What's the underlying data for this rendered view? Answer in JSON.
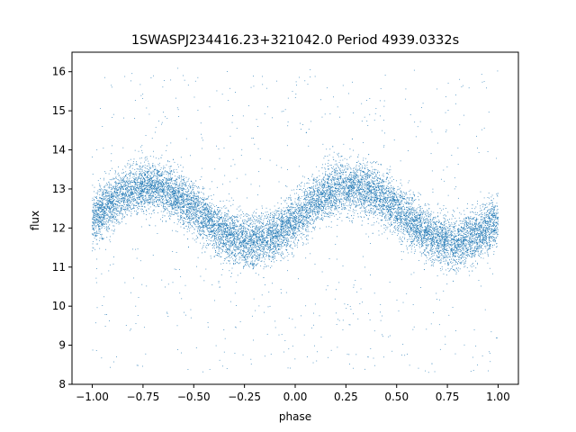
{
  "chart_data": {
    "type": "scatter",
    "title": "1SWASPJ234416.23+321042.0 Period 4939.0332s",
    "xlabel": "phase",
    "ylabel": "flux",
    "xlim": [
      -1.1,
      1.1
    ],
    "ylim": [
      8.0,
      16.5
    ],
    "xticks": [
      -1.0,
      -0.75,
      -0.5,
      -0.25,
      0.0,
      0.25,
      0.5,
      0.75,
      1.0
    ],
    "xtick_labels": [
      "−1.00",
      "−0.75",
      "−0.50",
      "−0.25",
      "0.00",
      "0.25",
      "0.50",
      "0.75",
      "1.00"
    ],
    "yticks": [
      8,
      9,
      10,
      11,
      12,
      13,
      14,
      15,
      16
    ],
    "ytick_labels": [
      "8",
      "9",
      "10",
      "11",
      "12",
      "13",
      "14",
      "15",
      "16"
    ],
    "grid": false,
    "legend": "none",
    "marker_color": "#1f77b4",
    "series": [
      {
        "model": "sinusoid",
        "phase_range": [
          -1.0,
          1.0
        ],
        "mean_flux": 12.35,
        "amplitude": 0.72,
        "peak_phase": [
          -0.72,
          0.28
        ],
        "trough_phase": [
          -0.2,
          0.8
        ],
        "scatter_sigma": 0.32,
        "point_count": 14000,
        "outlier_count": 700,
        "outlier_range": [
          8.3,
          16.1
        ]
      }
    ]
  }
}
